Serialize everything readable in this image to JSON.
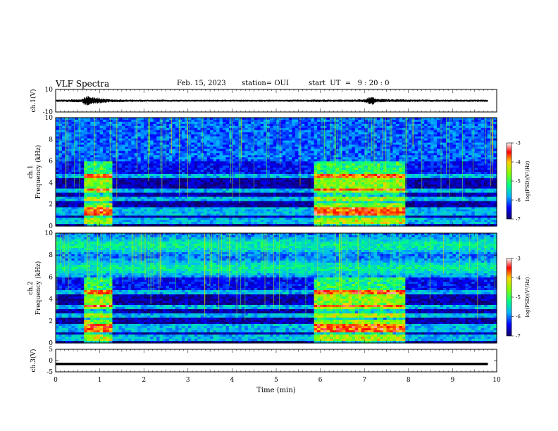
{
  "header": {
    "title": "VLF Spectra",
    "date": "Feb. 15, 2023",
    "station": "station= OUI",
    "start": "start  UT  =   9 : 20 : 0"
  },
  "chart_data": [
    {
      "type": "line",
      "panel": "ch1-waveform",
      "ylabel": "ch.1(V)",
      "ylim": [
        -10,
        10
      ],
      "yticks": [
        "10",
        "-10"
      ],
      "xlim": [
        0,
        10
      ],
      "x_minutes": [
        0,
        0.6,
        0.65,
        0.75,
        0.85,
        0.95,
        1.1,
        1.3,
        2,
        3,
        4,
        5,
        5.9,
        6.5,
        7.0,
        7.15,
        7.3,
        8,
        9,
        9.8
      ],
      "amplitude_v": [
        0.8,
        1.0,
        2.8,
        3.2,
        2.6,
        2.0,
        1.4,
        0.9,
        0.7,
        0.6,
        0.6,
        0.6,
        0.8,
        0.8,
        1.0,
        3.0,
        1.2,
        0.8,
        0.7,
        0.7
      ]
    },
    {
      "type": "heatmap",
      "panel": "ch1-spectrogram",
      "ylabel": "ch.1\nFrequency (kHz)",
      "ylim": [
        0,
        10
      ],
      "yticks": [
        "0",
        "2",
        "4",
        "6",
        "8",
        "10"
      ],
      "xlim": [
        0,
        10
      ],
      "colorbar": {
        "label": "log(PSD)(V²/Hz)",
        "range": [
          -7,
          -3
        ],
        "ticks": [
          "-3",
          "-4",
          "-5",
          "-6",
          "-7"
        ]
      },
      "bursts_minutes": [
        [
          0.62,
          1.32
        ],
        [
          5.85,
          7.9
        ]
      ]
    },
    {
      "type": "heatmap",
      "panel": "ch2-spectrogram",
      "ylabel": "ch.2\nFrequency (kHz)",
      "ylim": [
        0,
        10
      ],
      "yticks": [
        "0",
        "2",
        "4",
        "6",
        "8",
        "10"
      ],
      "xlim": [
        0,
        10
      ],
      "colorbar": {
        "label": "log(PSD)(V²/Hz)",
        "range": [
          -7,
          -3
        ],
        "ticks": [
          "-3",
          "-4",
          "-5",
          "-6",
          "-7"
        ]
      },
      "bursts_minutes": [
        [
          0.62,
          1.32
        ],
        [
          5.85,
          7.9
        ]
      ]
    },
    {
      "type": "line",
      "panel": "ch3-waveform",
      "ylabel": "ch.3(V)",
      "ylim": [
        -5,
        5
      ],
      "yticks": [
        "5",
        "0",
        "-5"
      ],
      "xlim": [
        0,
        10
      ],
      "x_minutes": [
        0,
        9.8
      ],
      "values_v": [
        -1.5,
        -1.5
      ],
      "xlabel": "Time  (min)",
      "xticks": [
        "0",
        "1",
        "2",
        "3",
        "4",
        "5",
        "6",
        "7",
        "8",
        "9",
        "10"
      ]
    }
  ]
}
